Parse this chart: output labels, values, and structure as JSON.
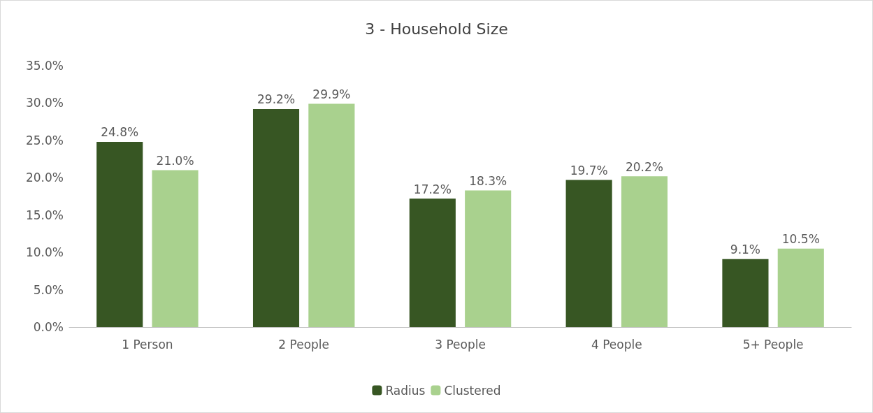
{
  "chart_data": {
    "type": "bar",
    "title": "3 - Household Size",
    "categories": [
      "1 Person",
      "2 People",
      "3 People",
      "4 People",
      "5+ People"
    ],
    "series": [
      {
        "name": "Radius",
        "color": "#375623",
        "values": [
          24.8,
          29.2,
          17.2,
          19.7,
          9.1
        ],
        "value_labels": [
          "24.8%",
          "29.2%",
          "17.2%",
          "19.7%",
          "9.1%"
        ]
      },
      {
        "name": "Clustered",
        "color": "#a9d18e",
        "values": [
          21.0,
          29.9,
          18.3,
          20.2,
          10.5
        ],
        "value_labels": [
          "21.0%",
          "29.9%",
          "18.3%",
          "20.2%",
          "10.5%"
        ]
      }
    ],
    "ylim": [
      0,
      35
    ],
    "yticks": [
      {
        "value": 0,
        "label": "0.0%"
      },
      {
        "value": 5,
        "label": "5.0%"
      },
      {
        "value": 10,
        "label": "10.0%"
      },
      {
        "value": 15,
        "label": "15.0%"
      },
      {
        "value": 20,
        "label": "20.0%"
      },
      {
        "value": 25,
        "label": "25.0%"
      },
      {
        "value": 30,
        "label": "30.0%"
      },
      {
        "value": 35,
        "label": "35.0%"
      }
    ],
    "grid": false,
    "legend": "bottom"
  }
}
